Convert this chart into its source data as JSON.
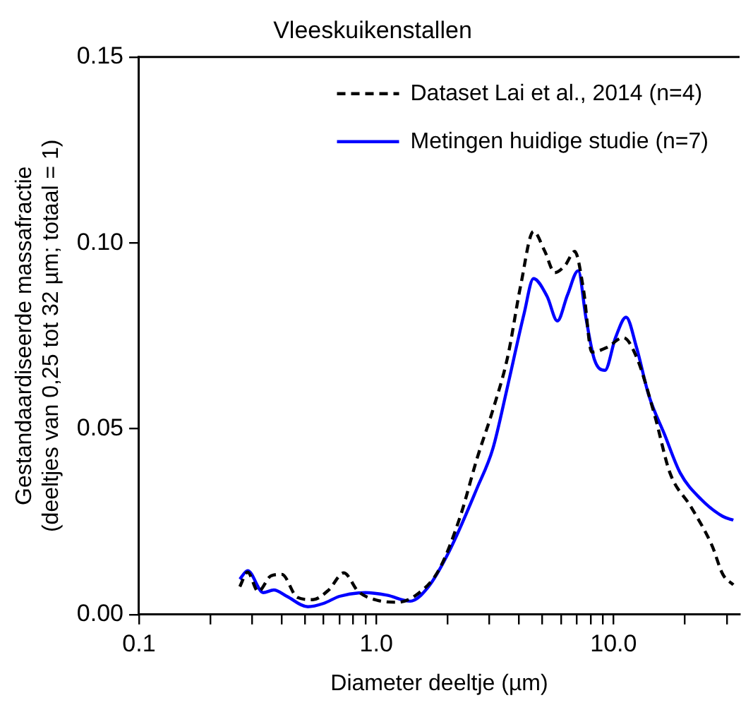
{
  "chart_data": {
    "type": "line",
    "title": "Vleeskuikenstallen",
    "xlabel": "Diameter deeltje (µm)",
    "ylabel": "Gestandaardiseerde massafractie\n(deeltjes van 0,25 tot 32 µm; totaal = 1)",
    "log": "x",
    "xlim": [
      0.1,
      34
    ],
    "ylim": [
      0,
      0.15
    ],
    "xticks": [
      {
        "value": 0.1,
        "label": "0.1"
      },
      {
        "value": 0.2,
        "label": null
      },
      {
        "value": 0.3,
        "label": null
      },
      {
        "value": 0.4,
        "label": null
      },
      {
        "value": 0.5,
        "label": null
      },
      {
        "value": 0.6,
        "label": null
      },
      {
        "value": 0.7,
        "label": null
      },
      {
        "value": 0.8,
        "label": null
      },
      {
        "value": 0.9,
        "label": null
      },
      {
        "value": 1,
        "label": "1.0"
      },
      {
        "value": 2,
        "label": null
      },
      {
        "value": 3,
        "label": null
      },
      {
        "value": 4,
        "label": null
      },
      {
        "value": 5,
        "label": null
      },
      {
        "value": 6,
        "label": null
      },
      {
        "value": 7,
        "label": null
      },
      {
        "value": 8,
        "label": null
      },
      {
        "value": 9,
        "label": null
      },
      {
        "value": 10,
        "label": "10.0"
      },
      {
        "value": 20,
        "label": null
      },
      {
        "value": 30,
        "label": null
      }
    ],
    "yticks": [
      {
        "value": 0,
        "label": "0.00"
      },
      {
        "value": 0.05,
        "label": "0.05"
      },
      {
        "value": 0.1,
        "label": "0.10"
      },
      {
        "value": 0.15,
        "label": "0.15"
      }
    ],
    "grid": false,
    "legend": "top right",
    "marker": "none",
    "series": [
      {
        "name": "Dataset Lai et al., 2014 (n=4)",
        "color": "#000000",
        "line_style": "dashed",
        "x": [
          0.266,
          0.287,
          0.318,
          0.36,
          0.4,
          0.465,
          0.54,
          0.63,
          0.73,
          0.84,
          1.0,
          1.23,
          1.5,
          1.84,
          2.26,
          2.66,
          3.1,
          3.58,
          4.07,
          4.6,
          5.12,
          5.66,
          6.26,
          6.86,
          7.47,
          8.1,
          9.4,
          11.0,
          12.5,
          14.9,
          17.3,
          21.2,
          26.0,
          28.9,
          32
        ],
        "values": [
          0.0075,
          0.0114,
          0.0062,
          0.0104,
          0.0108,
          0.0046,
          0.004,
          0.0066,
          0.0112,
          0.0062,
          0.0039,
          0.0033,
          0.0056,
          0.0121,
          0.0264,
          0.042,
          0.055,
          0.0693,
          0.0888,
          0.1031,
          0.0979,
          0.092,
          0.094,
          0.0977,
          0.0875,
          0.0706,
          0.0719,
          0.0745,
          0.0693,
          0.0537,
          0.0381,
          0.029,
          0.0186,
          0.0108,
          0.008
        ]
      },
      {
        "name": "Metingen huidige studie (n=7)",
        "color": "#0000ff",
        "line_style": "solid",
        "x": [
          0.266,
          0.287,
          0.334,
          0.37,
          0.42,
          0.515,
          0.6,
          0.7,
          0.9,
          1.11,
          1.39,
          1.66,
          2.04,
          2.66,
          3.1,
          3.58,
          4.2,
          4.6,
          5.25,
          5.8,
          6.4,
          7.1,
          7.66,
          8.3,
          9.2,
          10.2,
          11.3,
          12.5,
          14.1,
          16.4,
          19.1,
          23.4,
          28.9,
          32
        ],
        "values": [
          0.0095,
          0.0118,
          0.0059,
          0.0066,
          0.0049,
          0.0021,
          0.003,
          0.0049,
          0.0059,
          0.0052,
          0.0036,
          0.0075,
          0.0173,
          0.034,
          0.0446,
          0.0615,
          0.081,
          0.0904,
          0.0856,
          0.079,
          0.086,
          0.0925,
          0.0797,
          0.0687,
          0.0657,
          0.0745,
          0.08,
          0.0719,
          0.0589,
          0.0485,
          0.0381,
          0.031,
          0.0264,
          0.0254
        ]
      }
    ]
  }
}
